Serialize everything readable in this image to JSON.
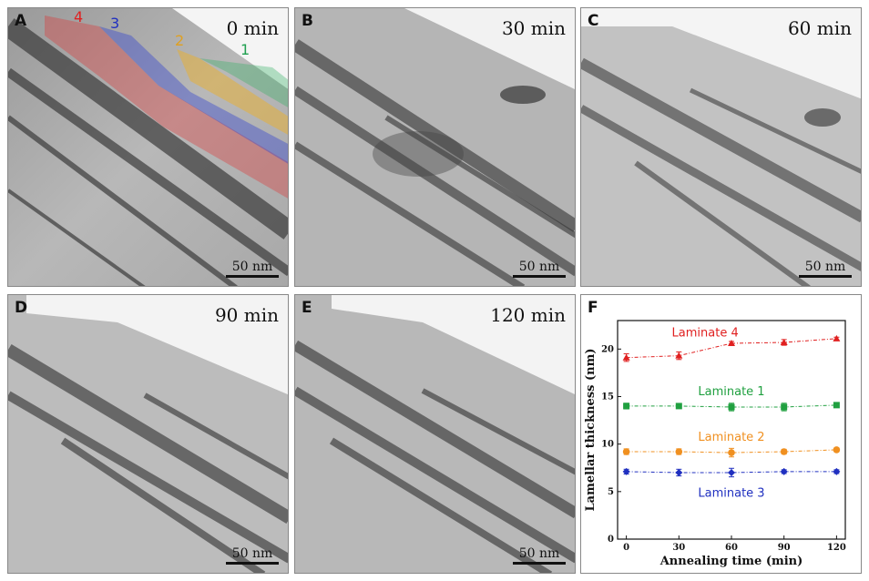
{
  "panels": [
    {
      "letter": "A",
      "time": "0 min",
      "scale": "50 nm"
    },
    {
      "letter": "B",
      "time": "30 min",
      "scale": "50 nm"
    },
    {
      "letter": "C",
      "time": "60 min",
      "scale": "50 nm"
    },
    {
      "letter": "D",
      "time": "90 min",
      "scale": "50 nm"
    },
    {
      "letter": "E",
      "time": "120 min",
      "scale": "50 nm"
    }
  ],
  "laminate_labels": [
    {
      "text": "4",
      "color": "#e02020"
    },
    {
      "text": "3",
      "color": "#2030c0"
    },
    {
      "text": "2",
      "color": "#e0a020"
    },
    {
      "text": "1",
      "color": "#20a050"
    }
  ],
  "chart_panel": {
    "letter": "F"
  },
  "chart_data": {
    "type": "line",
    "xlabel": "Annealing time (min)",
    "ylabel": "Lamellar thickness (nm)",
    "xlim": [
      -5,
      125
    ],
    "ylim": [
      0,
      23
    ],
    "x_ticks": [
      0,
      30,
      60,
      90,
      120
    ],
    "y_ticks": [
      0,
      5,
      10,
      15,
      20
    ],
    "x": [
      0,
      30,
      60,
      90,
      120
    ],
    "series": [
      {
        "name": "Laminate 4",
        "color": "#e02020",
        "marker": "triangle",
        "values": [
          19.1,
          19.3,
          20.6,
          20.7,
          21.1
        ],
        "errors": [
          0.4,
          0.4,
          0.2,
          0.3,
          0.15
        ]
      },
      {
        "name": "Laminate 1",
        "color": "#20a040",
        "marker": "square",
        "values": [
          14.0,
          14.0,
          13.9,
          13.9,
          14.1
        ],
        "errors": [
          0.3,
          0.25,
          0.4,
          0.4,
          0.15
        ]
      },
      {
        "name": "Laminate 2",
        "color": "#f09020",
        "marker": "circle",
        "values": [
          9.2,
          9.2,
          9.1,
          9.2,
          9.4
        ],
        "errors": [
          0.3,
          0.3,
          0.45,
          0.25,
          0.2
        ]
      },
      {
        "name": "Laminate 3",
        "color": "#2030c0",
        "marker": "diamond",
        "values": [
          7.1,
          7.0,
          7.0,
          7.1,
          7.1
        ],
        "errors": [
          0.25,
          0.35,
          0.45,
          0.2,
          0.2
        ]
      }
    ]
  }
}
